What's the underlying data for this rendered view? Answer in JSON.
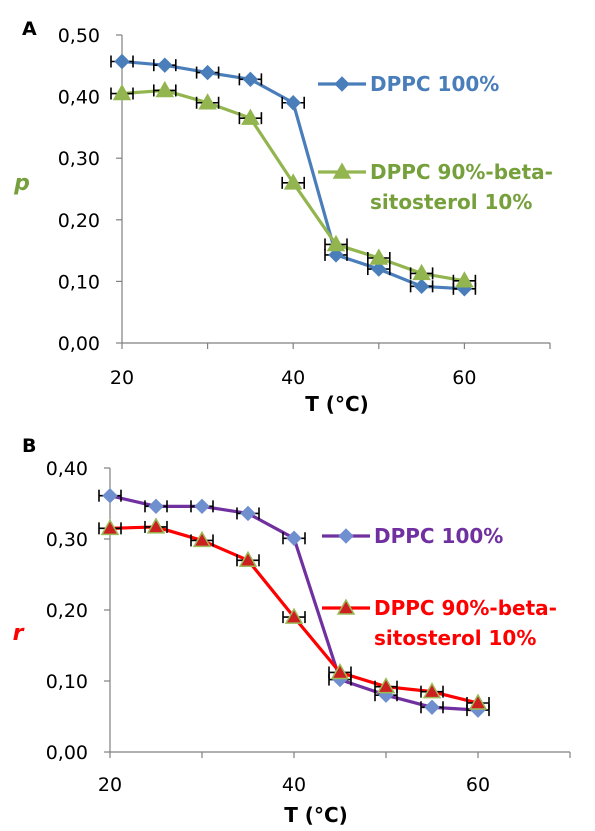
{
  "chart_data": [
    {
      "type": "line",
      "panel_label": "A",
      "xlabel": "T (°C)",
      "ylabel": "p",
      "xlim": [
        20,
        70
      ],
      "ylim": [
        0,
        0.5
      ],
      "x_ticks": [
        20,
        40,
        60
      ],
      "x_tick_labels": [
        "20",
        "40",
        "60"
      ],
      "y_ticks": [
        0,
        0.1,
        0.2,
        0.3,
        0.4,
        0.5
      ],
      "y_tick_labels": [
        "0,00",
        "0,10",
        "0,20",
        "0,30",
        "0,40",
        "0,50"
      ],
      "grid": false,
      "error_bars": true,
      "legend": "inline-right",
      "x": [
        20,
        25,
        30,
        35,
        40,
        45,
        50,
        55,
        60
      ],
      "series": [
        {
          "name": "DPPC 100%",
          "label_lines": [
            "DPPC 100%"
          ],
          "marker": "diamond",
          "color": "#4a7ebb",
          "marker_color": "#4a7ebb",
          "label_color": "#4a7ebb",
          "values": [
            0.457,
            0.451,
            0.439,
            0.428,
            0.39,
            0.143,
            0.12,
            0.092,
            0.088
          ]
        },
        {
          "name": "DPPC 90%-beta-sitosterol 10%",
          "label_lines": [
            "DPPC 90%-beta-",
            "sitosterol 10%"
          ],
          "marker": "triangle",
          "color": "#92b54f",
          "marker_color": "#92b54f",
          "label_color": "#76a03c",
          "values": [
            0.405,
            0.41,
            0.39,
            0.365,
            0.26,
            0.16,
            0.138,
            0.113,
            0.101
          ]
        }
      ]
    },
    {
      "type": "line",
      "panel_label": "B",
      "xlabel": "T (°C)",
      "ylabel": "r",
      "xlim": [
        20,
        70
      ],
      "ylim": [
        0,
        0.4
      ],
      "x_ticks": [
        20,
        40,
        60
      ],
      "x_tick_labels": [
        "20",
        "40",
        "60"
      ],
      "y_ticks": [
        0,
        0.1,
        0.2,
        0.3,
        0.4
      ],
      "y_tick_labels": [
        "0,00",
        "0,10",
        "0,20",
        "0,30",
        "0,40"
      ],
      "grid": false,
      "error_bars": true,
      "legend": "inline-right",
      "x": [
        20,
        25,
        30,
        35,
        40,
        45,
        50,
        55,
        60
      ],
      "series": [
        {
          "name": "DPPC 100%",
          "label_lines": [
            "DPPC 100%"
          ],
          "marker": "diamond",
          "color": "#7030a0",
          "marker_color": "#6f8fce",
          "label_color": "#7030a0",
          "values": [
            0.361,
            0.346,
            0.346,
            0.336,
            0.301,
            0.102,
            0.08,
            0.063,
            0.059
          ]
        },
        {
          "name": "DPPC 90%-beta-sitosterol 10%",
          "label_lines": [
            "DPPC 90%-beta-",
            "sitosterol 10%"
          ],
          "marker": "triangle",
          "color": "#ff0000",
          "marker_color": "#cc2020",
          "marker_stroke": "#9bbb59",
          "label_color": "#ff0000",
          "values": [
            0.315,
            0.317,
            0.298,
            0.27,
            0.19,
            0.112,
            0.092,
            0.085,
            0.069
          ]
        }
      ]
    }
  ]
}
